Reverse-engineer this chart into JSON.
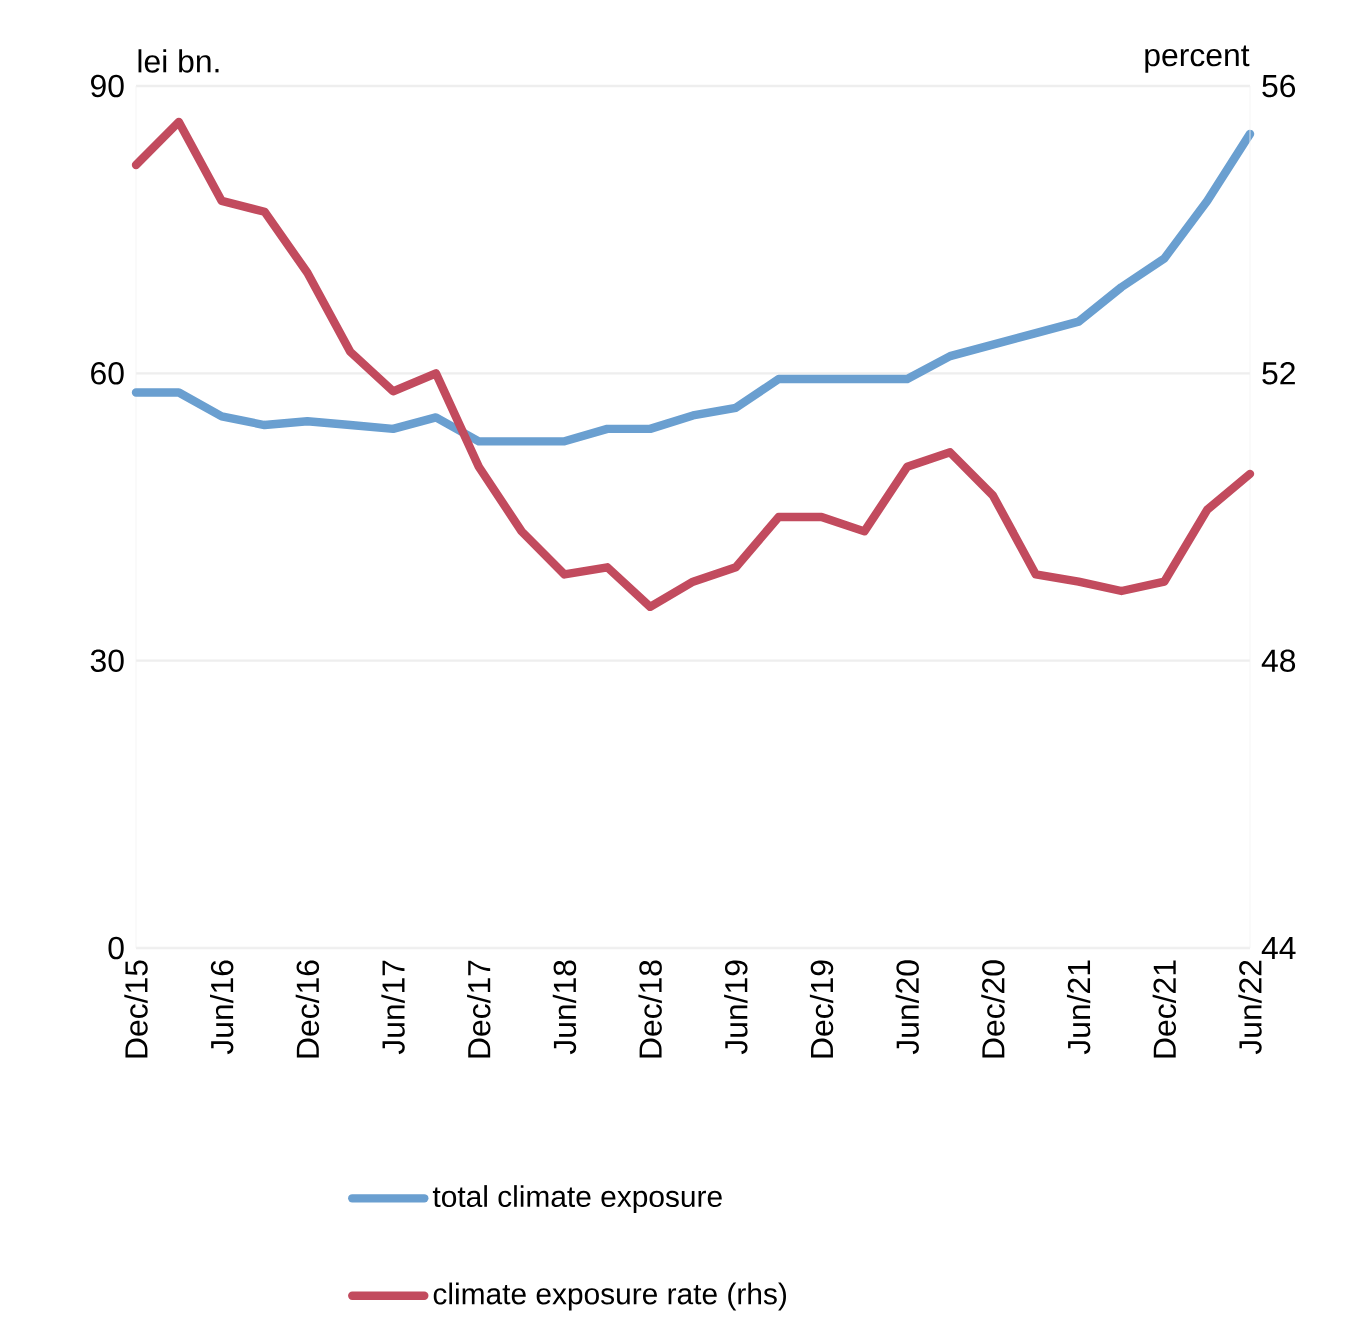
{
  "chart_data": {
    "type": "line",
    "ylabel": "lei bn.",
    "y2label": "percent",
    "categories": [
      "Dec/15",
      null,
      "Jun/16",
      null,
      "Dec/16",
      null,
      "Jun/17",
      null,
      "Dec/17",
      null,
      "Jun/18",
      null,
      "Dec/18",
      null,
      "Jun/19",
      null,
      "Dec/19",
      null,
      "Jun/20",
      null,
      "Dec/20",
      null,
      "Jun/21",
      null,
      "Dec/21",
      null,
      "Jun/22"
    ],
    "series": [
      {
        "name": "total climate exposure",
        "color": "#6a9fd0",
        "values": [
          58,
          58,
          55.5,
          54.6,
          55,
          54.6,
          54.2,
          55.4,
          52.9,
          52.9,
          52.9,
          54.2,
          54.2,
          55.6,
          56.4,
          59.4,
          59.4,
          59.4,
          59.4,
          61.8,
          63,
          64.2,
          65.4,
          69,
          72,
          78,
          85
        ]
      },
      {
        "name": "climate exposure rate (rhs)",
        "color": "#c24b5e",
        "axis": "y2",
        "values": [
          54.9,
          55.5,
          54.4,
          54.25,
          53.4,
          52.3,
          51.75,
          52.0,
          50.7,
          49.8,
          49.2,
          49.3,
          48.75,
          49.1,
          49.3,
          50.0,
          50.0,
          49.8,
          50.7,
          50.9,
          50.3,
          49.2,
          49.1,
          48.97,
          49.1,
          50.1,
          50.6
        ]
      }
    ],
    "ylim": [
      0,
      90
    ],
    "yticks": [
      0,
      30,
      60,
      90
    ],
    "y2lim": [
      44,
      56
    ],
    "y2ticks": [
      44,
      48,
      52,
      56
    ],
    "grid": "y",
    "legend": "bottom",
    "marker": "none",
    "line_style": "solid"
  }
}
